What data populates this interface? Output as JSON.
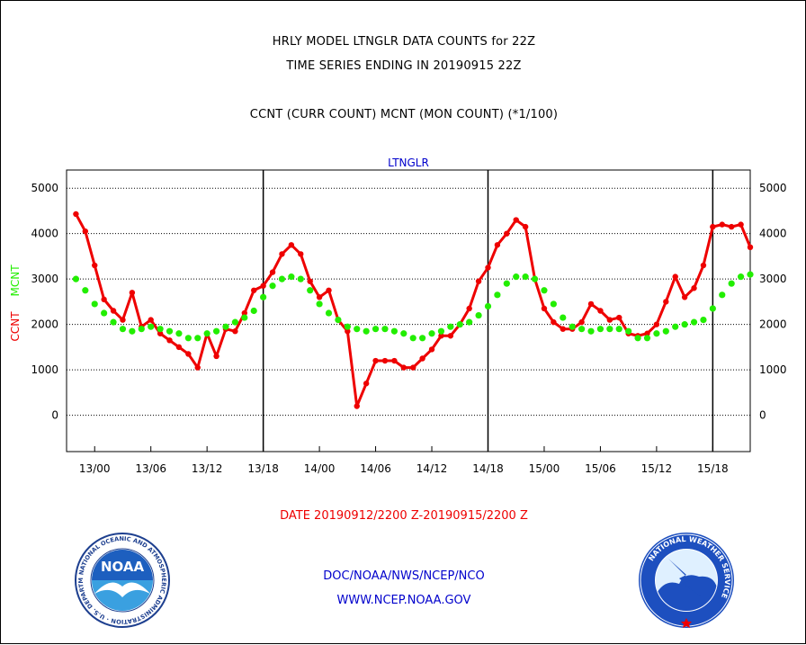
{
  "title_lines": [
    "HRLY MODEL LTNGLR DATA COUNTS for 22Z",
    "TIME SERIES ENDING IN 20190915 22Z",
    "CCNT (CURR COUNT) MCNT (MON COUNT) (*1/100)"
  ],
  "footer": {
    "date_range": "DATE 20190912/2200 Z-20190915/2200 Z",
    "org": "DOC/NOAA/NWS/NCEP/NCO",
    "url": "WWW.NCEP.NOAA.GOV"
  },
  "logos": {
    "noaa_text": "NOAA",
    "noaa_ring_text": "NATIONAL OCEANIC AND ATMOSPHERIC ADMINISTRATION · U.S. DEPARTMENT OF COMMERCE ·",
    "nws_ring_text": "NATIONAL WEATHER SERVICE"
  },
  "colors": {
    "ccnt": "#ee0000",
    "mcnt": "#22ee00",
    "plot_label": "#0000cc"
  },
  "chart_data": {
    "type": "line",
    "subtitle": "LTNGLR",
    "ylabel_left": [
      "CCNT",
      "MCNT"
    ],
    "ylim": [
      -800,
      5400
    ],
    "yticks": [
      0,
      1000,
      2000,
      3000,
      4000,
      5000
    ],
    "x_range_hours": [
      -1,
      72
    ],
    "xticks": [
      "13/00",
      "13/06",
      "13/12",
      "13/18",
      "14/00",
      "14/06",
      "14/12",
      "14/18",
      "15/00",
      "15/06",
      "15/12",
      "15/18"
    ],
    "day_boundary_labels": [
      "13/18",
      "14/18",
      "15/18"
    ],
    "series": [
      {
        "name": "CCNT",
        "values": [
          4430,
          4050,
          3300,
          2550,
          2300,
          2100,
          2700,
          1950,
          2100,
          1800,
          1650,
          1500,
          1350,
          1050,
          1800,
          1300,
          1900,
          1850,
          2250,
          2750,
          2850,
          3150,
          3550,
          3750,
          3550,
          2950,
          2600,
          2750,
          2100,
          1850,
          200,
          700,
          1200,
          1200,
          1200,
          1050,
          1050,
          1250,
          1450,
          1750,
          1750,
          2000,
          2350,
          2950,
          3250,
          3750,
          4000,
          4300,
          4150,
          3000,
          2350,
          2050,
          1900,
          1900,
          2050,
          2450,
          2300,
          2100,
          2150,
          1800,
          1750,
          1800,
          2000,
          2500,
          3050,
          2600,
          2800,
          3300,
          4150,
          4200,
          4150,
          4200,
          3700
        ]
      },
      {
        "name": "MCNT",
        "values": [
          3000,
          2750,
          2450,
          2250,
          2050,
          1900,
          1850,
          1900,
          1950,
          1900,
          1850,
          1800,
          1700,
          1700,
          1800,
          1850,
          1950,
          2050,
          2150,
          2300,
          2600,
          2850,
          3000,
          3050,
          3000,
          2750,
          2450,
          2250,
          2100,
          1950,
          1900,
          1850,
          1900,
          1900,
          1850,
          1800,
          1700,
          1700,
          1800,
          1850,
          1950,
          2000,
          2050,
          2200,
          2400,
          2650,
          2900,
          3050,
          3050,
          3000,
          2750,
          2450,
          2150,
          1950,
          1900,
          1850,
          1900,
          1900,
          1900,
          1850,
          1700,
          1700,
          1800,
          1850,
          1950,
          2000,
          2050,
          2100,
          2350,
          2650,
          2900,
          3050,
          3100
        ]
      }
    ]
  }
}
